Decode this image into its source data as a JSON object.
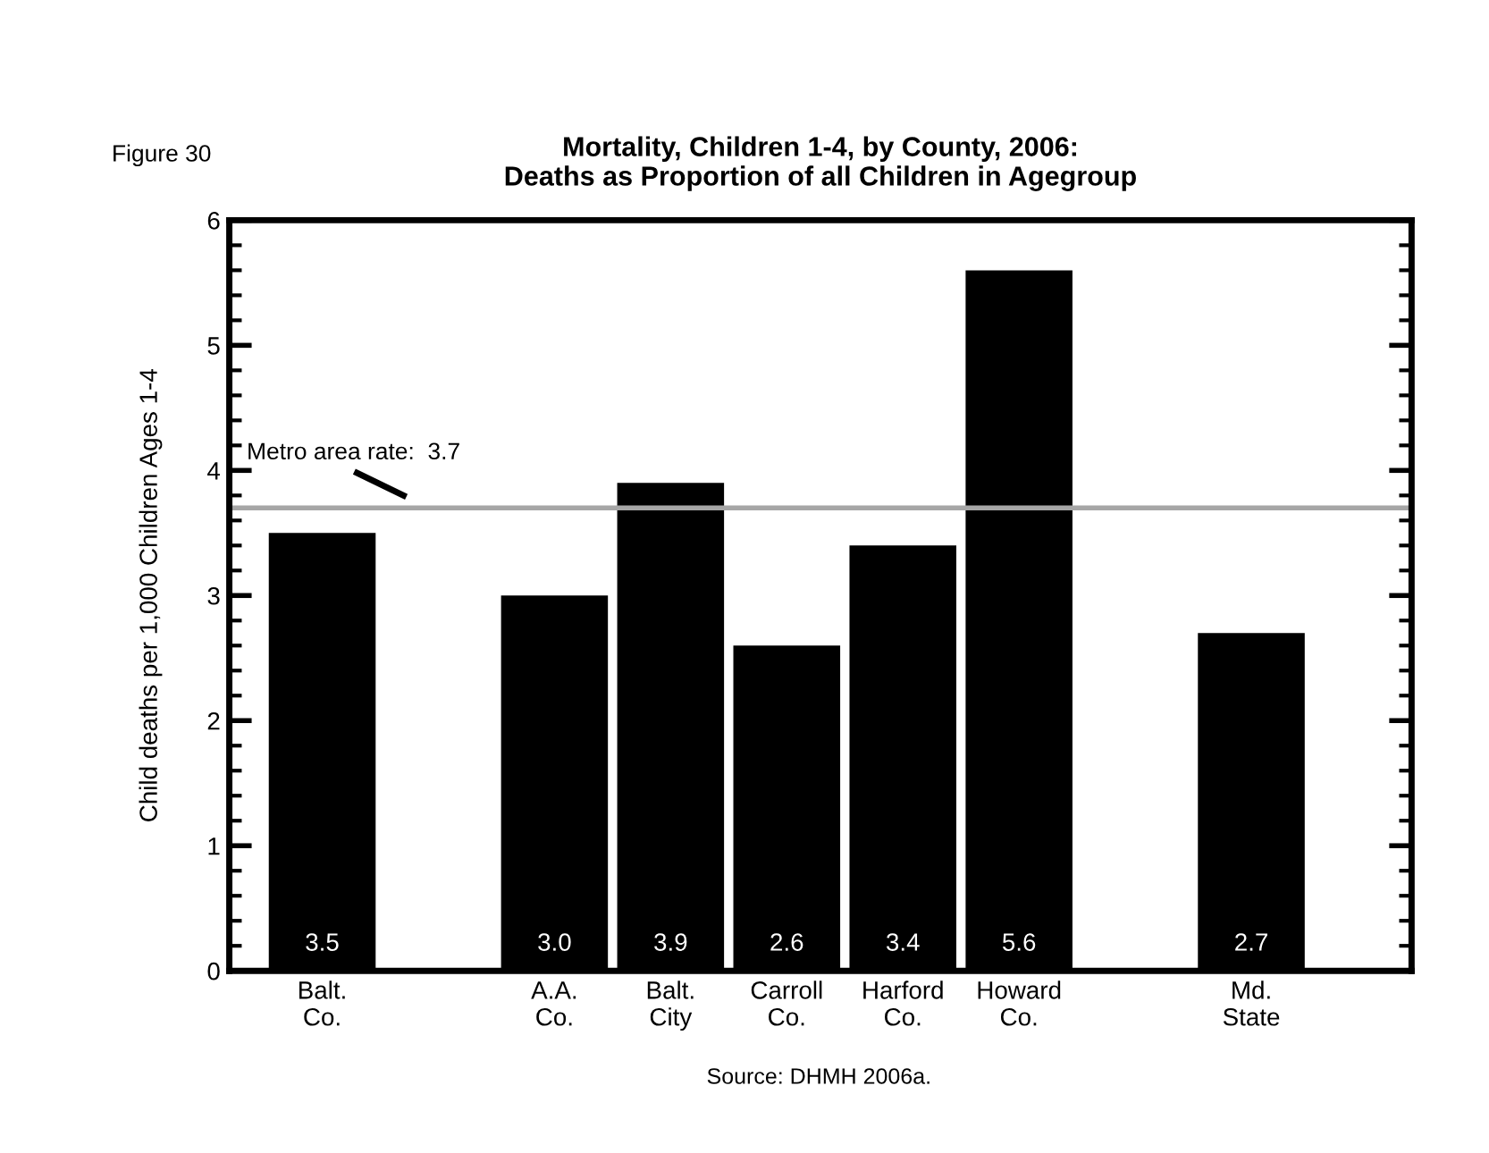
{
  "chart_data": {
    "type": "bar",
    "title": "Mortality, Children 1-4, by County, 2006:\nDeaths as Proportion of all Children in Agegroup",
    "ylabel": "Child deaths per 1,000 Children Ages 1-4",
    "categories": [
      "Balt.\nCo.",
      null,
      "A.A.\nCo.",
      "Balt.\nCity",
      "Carroll\nCo.",
      "Harford\nCo.",
      "Howard\nCo.",
      null,
      "Md.\nState"
    ],
    "values": [
      3.5,
      null,
      3.0,
      3.9,
      2.6,
      3.4,
      5.6,
      null,
      2.7
    ],
    "color": "#000000",
    "value_labels": [
      "3.5",
      null,
      "3.0",
      "3.9",
      "2.6",
      "3.4",
      "5.6",
      null,
      "2.7"
    ],
    "ylim": [
      0,
      6
    ],
    "yticks": [
      0,
      1,
      2,
      3,
      4,
      5,
      6
    ],
    "grid": false,
    "legend": false,
    "ref_lines": [
      {
        "axis": "y",
        "value": 3.7,
        "label": "Metro area rate:  3.7",
        "color": "#a6a6a6",
        "line_style": "solid"
      }
    ],
    "annotations": [
      "Figure 30",
      "Source: DHMH 2006a."
    ]
  }
}
